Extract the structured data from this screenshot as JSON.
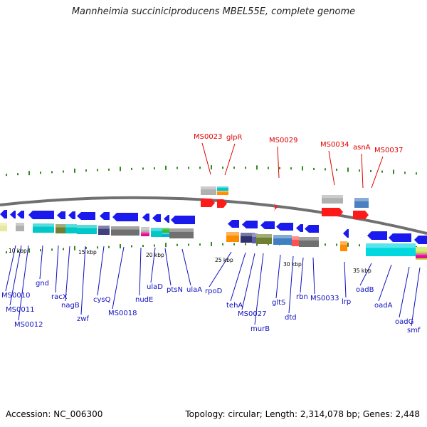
{
  "title": "Mannheimia succiniciproducens MBEL55E, complete genome",
  "footer": {
    "accession": "Accession: NC_006300",
    "info": "Topology: circular; Length: 2,314,078 bp; Genes: 2,448"
  },
  "colors": {
    "upper_label": "#e00000",
    "lower_label": "#1010c0",
    "forward_gene": "#ff1a1a",
    "reverse_gene": "#1a1aee",
    "tick": "#2e8b1e",
    "backbone": "#808080"
  },
  "kbp_ticks": [
    "10 kbp",
    "15 kbp",
    "20 kbp",
    "25 kbp",
    "30 kbp",
    "35 kbp"
  ],
  "upper_labels": [
    "MS0023",
    "glpR",
    "MS0029",
    "MS0034",
    "asnA",
    "MS0037"
  ],
  "lower_labels": [
    "MS0010",
    "MS0011",
    "MS0012",
    "gnd",
    "racX",
    "nagB",
    "zwf",
    "cysQ",
    "MS0018",
    "nudE",
    "ulaD",
    "ptsN",
    "ulaA",
    "rpoD",
    "tehA",
    "MS0027",
    "murB",
    "gltS",
    "dtd",
    "rbn",
    "MS0033",
    "lrp",
    "oadB",
    "oadA",
    "oadG",
    "smf"
  ]
}
